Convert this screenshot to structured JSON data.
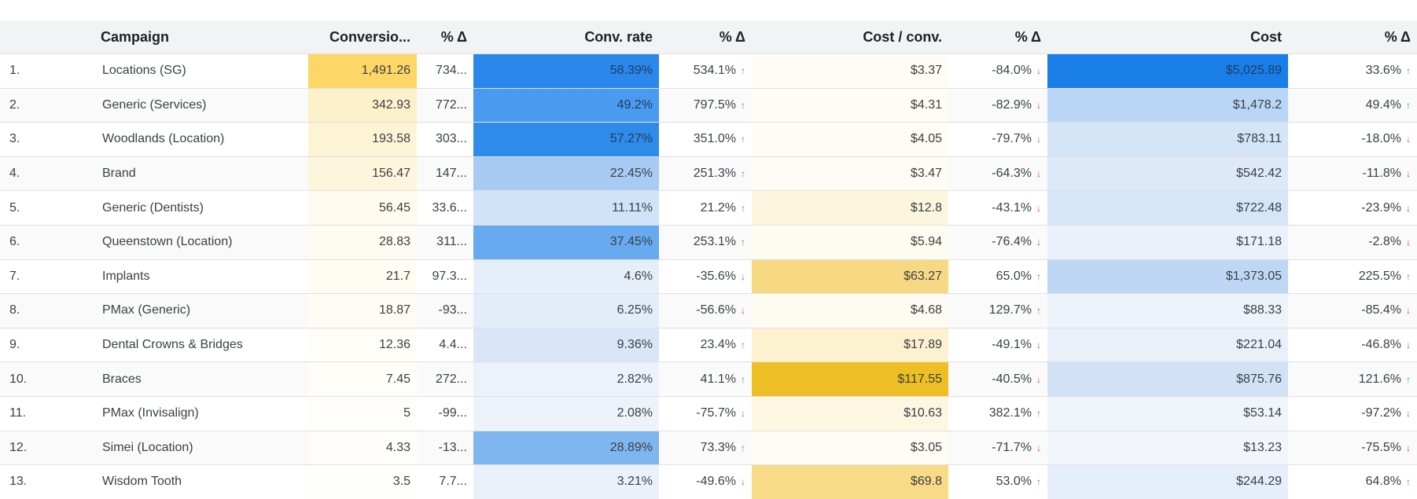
{
  "table": {
    "headers": [
      "",
      "Campaign",
      "Conversio...",
      "% Δ",
      "Conv. rate",
      "% Δ",
      "Cost / conv.",
      "% Δ",
      "Cost",
      "% Δ"
    ],
    "rows": [
      {
        "n": "1.",
        "campaign": "Locations (SG)",
        "conv": "1,491.26",
        "conv_d": "734...",
        "rate": "58.39%",
        "rate_d": "534.1%",
        "rate_dir": "up",
        "cpc": "$3.37",
        "cpc_d": "-84.0%",
        "cpc_dir": "down",
        "cost": "$5,025.89",
        "cost_d": "33.6%",
        "cost_dir": "up"
      },
      {
        "n": "2.",
        "campaign": "Generic (Services)",
        "conv": "342.93",
        "conv_d": "772...",
        "rate": "49.2%",
        "rate_d": "797.5%",
        "rate_dir": "up",
        "cpc": "$4.31",
        "cpc_d": "-82.9%",
        "cpc_dir": "down",
        "cost": "$1,478.2",
        "cost_d": "49.4%",
        "cost_dir": "up"
      },
      {
        "n": "3.",
        "campaign": "Woodlands (Location)",
        "conv": "193.58",
        "conv_d": "303...",
        "rate": "57.27%",
        "rate_d": "351.0%",
        "rate_dir": "up",
        "cpc": "$4.05",
        "cpc_d": "-79.7%",
        "cpc_dir": "down",
        "cost": "$783.11",
        "cost_d": "-18.0%",
        "cost_dir": "down"
      },
      {
        "n": "4.",
        "campaign": "Brand",
        "conv": "156.47",
        "conv_d": "147...",
        "rate": "22.45%",
        "rate_d": "251.3%",
        "rate_dir": "up",
        "cpc": "$3.47",
        "cpc_d": "-64.3%",
        "cpc_dir": "down",
        "cost": "$542.42",
        "cost_d": "-11.8%",
        "cost_dir": "down"
      },
      {
        "n": "5.",
        "campaign": "Generic (Dentists)",
        "conv": "56.45",
        "conv_d": "33.6...",
        "rate": "11.11%",
        "rate_d": "21.2%",
        "rate_dir": "up",
        "cpc": "$12.8",
        "cpc_d": "-43.1%",
        "cpc_dir": "down",
        "cost": "$722.48",
        "cost_d": "-23.9%",
        "cost_dir": "down"
      },
      {
        "n": "6.",
        "campaign": "Queenstown (Location)",
        "conv": "28.83",
        "conv_d": "311...",
        "rate": "37.45%",
        "rate_d": "253.1%",
        "rate_dir": "up",
        "cpc": "$5.94",
        "cpc_d": "-76.4%",
        "cpc_dir": "down",
        "cost": "$171.18",
        "cost_d": "-2.8%",
        "cost_dir": "down"
      },
      {
        "n": "7.",
        "campaign": "Implants",
        "conv": "21.7",
        "conv_d": "97.3...",
        "rate": "4.6%",
        "rate_d": "-35.6%",
        "rate_dir": "down",
        "cpc": "$63.27",
        "cpc_d": "65.0%",
        "cpc_dir": "up",
        "cost": "$1,373.05",
        "cost_d": "225.5%",
        "cost_dir": "up"
      },
      {
        "n": "8.",
        "campaign": "PMax (Generic)",
        "conv": "18.87",
        "conv_d": "-93...",
        "rate": "6.25%",
        "rate_d": "-56.6%",
        "rate_dir": "down",
        "cpc": "$4.68",
        "cpc_d": "129.7%",
        "cpc_dir": "up",
        "cost": "$88.33",
        "cost_d": "-85.4%",
        "cost_dir": "down"
      },
      {
        "n": "9.",
        "campaign": "Dental Crowns & Bridges",
        "conv": "12.36",
        "conv_d": "4.4...",
        "rate": "9.36%",
        "rate_d": "23.4%",
        "rate_dir": "up",
        "cpc": "$17.89",
        "cpc_d": "-49.1%",
        "cpc_dir": "down",
        "cost": "$221.04",
        "cost_d": "-46.8%",
        "cost_dir": "down"
      },
      {
        "n": "10.",
        "campaign": "Braces",
        "conv": "7.45",
        "conv_d": "272...",
        "rate": "2.82%",
        "rate_d": "41.1%",
        "rate_dir": "up",
        "cpc": "$117.55",
        "cpc_d": "-40.5%",
        "cpc_dir": "down",
        "cost": "$875.76",
        "cost_d": "121.6%",
        "cost_dir": "up"
      },
      {
        "n": "11.",
        "campaign": "PMax (Invisalign)",
        "conv": "5",
        "conv_d": "-99...",
        "rate": "2.08%",
        "rate_d": "-75.7%",
        "rate_dir": "down",
        "cpc": "$10.63",
        "cpc_d": "382.1%",
        "cpc_dir": "up",
        "cost": "$53.14",
        "cost_d": "-97.2%",
        "cost_dir": "down"
      },
      {
        "n": "12.",
        "campaign": "Simei (Location)",
        "conv": "4.33",
        "conv_d": "-13...",
        "rate": "28.89%",
        "rate_d": "73.3%",
        "rate_dir": "up",
        "cpc": "$3.05",
        "cpc_d": "-71.7%",
        "cpc_dir": "down",
        "cost": "$13.23",
        "cost_d": "-75.5%",
        "cost_dir": "down"
      },
      {
        "n": "13.",
        "campaign": "Wisdom Tooth",
        "conv": "3.5",
        "conv_d": "7.7...",
        "rate": "3.21%",
        "rate_d": "-49.6%",
        "rate_dir": "down",
        "cpc": "$69.8",
        "cpc_d": "53.0%",
        "cpc_dir": "up",
        "cost": "$244.29",
        "cost_d": "64.8%",
        "cost_dir": "up"
      }
    ]
  },
  "heat": {
    "conv": [
      "#fcd667",
      "#fdf1cc",
      "#fdf4d6",
      "#fdf6dc",
      "#fefaee",
      "#fefbf2",
      "#fefcf3",
      "#fefcf4",
      "#fefdf7",
      "#fefdf8",
      "#fefdfa",
      "#fefdfa",
      "#fefefb"
    ],
    "rate": [
      "#2b88ea",
      "#4a9bef",
      "#2f8bea",
      "#a7cbf3",
      "#d0e3f8",
      "#68aaf0",
      "#e6eef9",
      "#e3ecf9",
      "#d8e6f8",
      "#ecf2fb",
      "#eef3fb",
      "#7fb6f0",
      "#ebf1fa"
    ],
    "cpc": [
      "#fefcf5",
      "#fefcf4",
      "#fefcf4",
      "#fefcf5",
      "#fdf6df",
      "#fefbf1",
      "#f7d983",
      "#fefbf2",
      "#fdf2d0",
      "#eebf24",
      "#fdf6e1",
      "#fefcf5",
      "#f8db87"
    ],
    "cost": [
      "#1a7ee9",
      "#b9d6f6",
      "#d4e5f8",
      "#dde9f9",
      "#d6e6f8",
      "#eaf1fa",
      "#bdd7f5",
      "#eef3fb",
      "#e9f0fa",
      "#d1e2f7",
      "#f0f5fb",
      "#f2f6fc",
      "#e6eefa"
    ]
  }
}
